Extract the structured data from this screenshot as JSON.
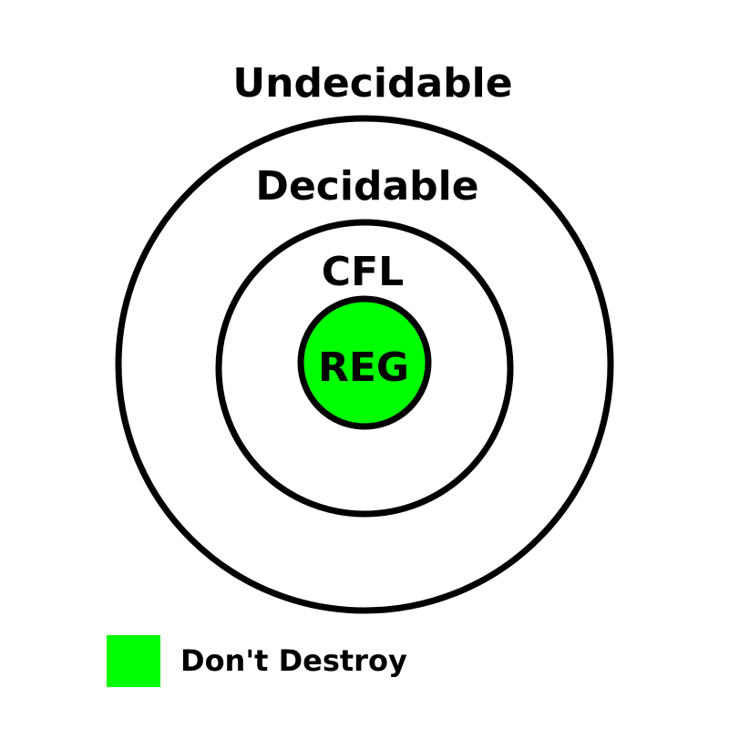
{
  "diagram": {
    "title": "Undecidable",
    "rings": [
      {
        "label": "Decidable"
      },
      {
        "label": "CFL"
      },
      {
        "label": "REG"
      }
    ]
  },
  "legend": {
    "label": "Don't Destroy"
  },
  "colors": {
    "highlight": "#00ff00",
    "stroke": "#000000",
    "background": "#ffffff"
  }
}
